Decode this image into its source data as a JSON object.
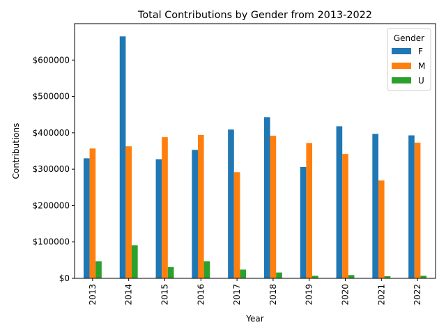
{
  "chart_data": {
    "type": "bar",
    "title": "Total Contributions by Gender from 2013-2022",
    "xlabel": "Year",
    "ylabel": "Contributions",
    "categories": [
      "2013",
      "2014",
      "2015",
      "2016",
      "2017",
      "2018",
      "2019",
      "2020",
      "2021",
      "2022"
    ],
    "series": [
      {
        "name": "F",
        "color": "#1f77b4",
        "values": [
          330000,
          665000,
          327000,
          353000,
          409000,
          443000,
          306000,
          418000,
          397000,
          393000
        ]
      },
      {
        "name": "M",
        "color": "#ff7f0e",
        "values": [
          357000,
          363000,
          388000,
          394000,
          292000,
          392000,
          372000,
          342000,
          269000,
          373000
        ]
      },
      {
        "name": "U",
        "color": "#2ca02c",
        "values": [
          47000,
          91000,
          31000,
          47000,
          24000,
          16000,
          7000,
          9000,
          6000,
          7000
        ]
      }
    ],
    "ylim": [
      0,
      700000
    ],
    "yticks": [
      0,
      100000,
      200000,
      300000,
      400000,
      500000,
      600000
    ],
    "ytick_labels": [
      "$0",
      "$100000",
      "$200000",
      "$300000",
      "$400000",
      "$500000",
      "$600000"
    ],
    "grid": false,
    "legend": {
      "title": "Gender",
      "placement": "top-right"
    }
  }
}
